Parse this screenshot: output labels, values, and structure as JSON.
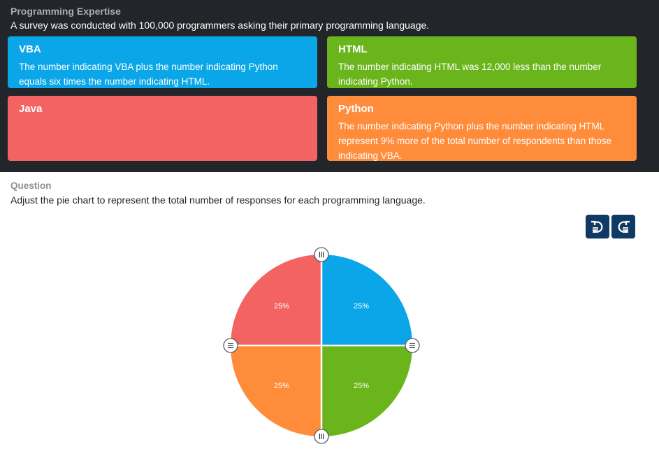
{
  "header": {
    "title": "Programming Expertise",
    "intro": "A survey was conducted with 100,000 programmers asking their primary programming language."
  },
  "cards": [
    {
      "id": "vba",
      "title": "VBA",
      "desc": "The number indicating VBA plus the number indicating Python equals six times the number indicating HTML.",
      "color": "#0aa6e8"
    },
    {
      "id": "html",
      "title": "HTML",
      "desc": "The number indicating HTML was 12,000 less than the number indicating Python.",
      "color": "#6ab51c"
    },
    {
      "id": "java",
      "title": "Java",
      "desc": "",
      "color": "#f26362"
    },
    {
      "id": "python",
      "title": "Python",
      "desc": "The number indicating Python plus the number indicating HTML represent 9% more of the total number of respondents than those indicating VBA.",
      "color": "#ff8c3b"
    }
  ],
  "question": {
    "label": "Question",
    "text": "Adjust the pie chart to represent the total number of responses for each programming language."
  },
  "toolbar": {
    "undo_icon": "undo-icon",
    "redo_icon": "redo-icon",
    "button_color": "#0e3a64"
  },
  "chart_data": {
    "type": "pie",
    "slices": [
      {
        "category": "VBA",
        "value": 25,
        "label": "25%",
        "color": "#0aa6e8"
      },
      {
        "category": "HTML",
        "value": 25,
        "label": "25%",
        "color": "#6ab51c"
      },
      {
        "category": "Python",
        "value": 25,
        "label": "25%",
        "color": "#ff8c3b"
      },
      {
        "category": "Java",
        "value": 25,
        "label": "25%",
        "color": "#f26362"
      }
    ],
    "handle_icon": "drag-handle-icon"
  }
}
